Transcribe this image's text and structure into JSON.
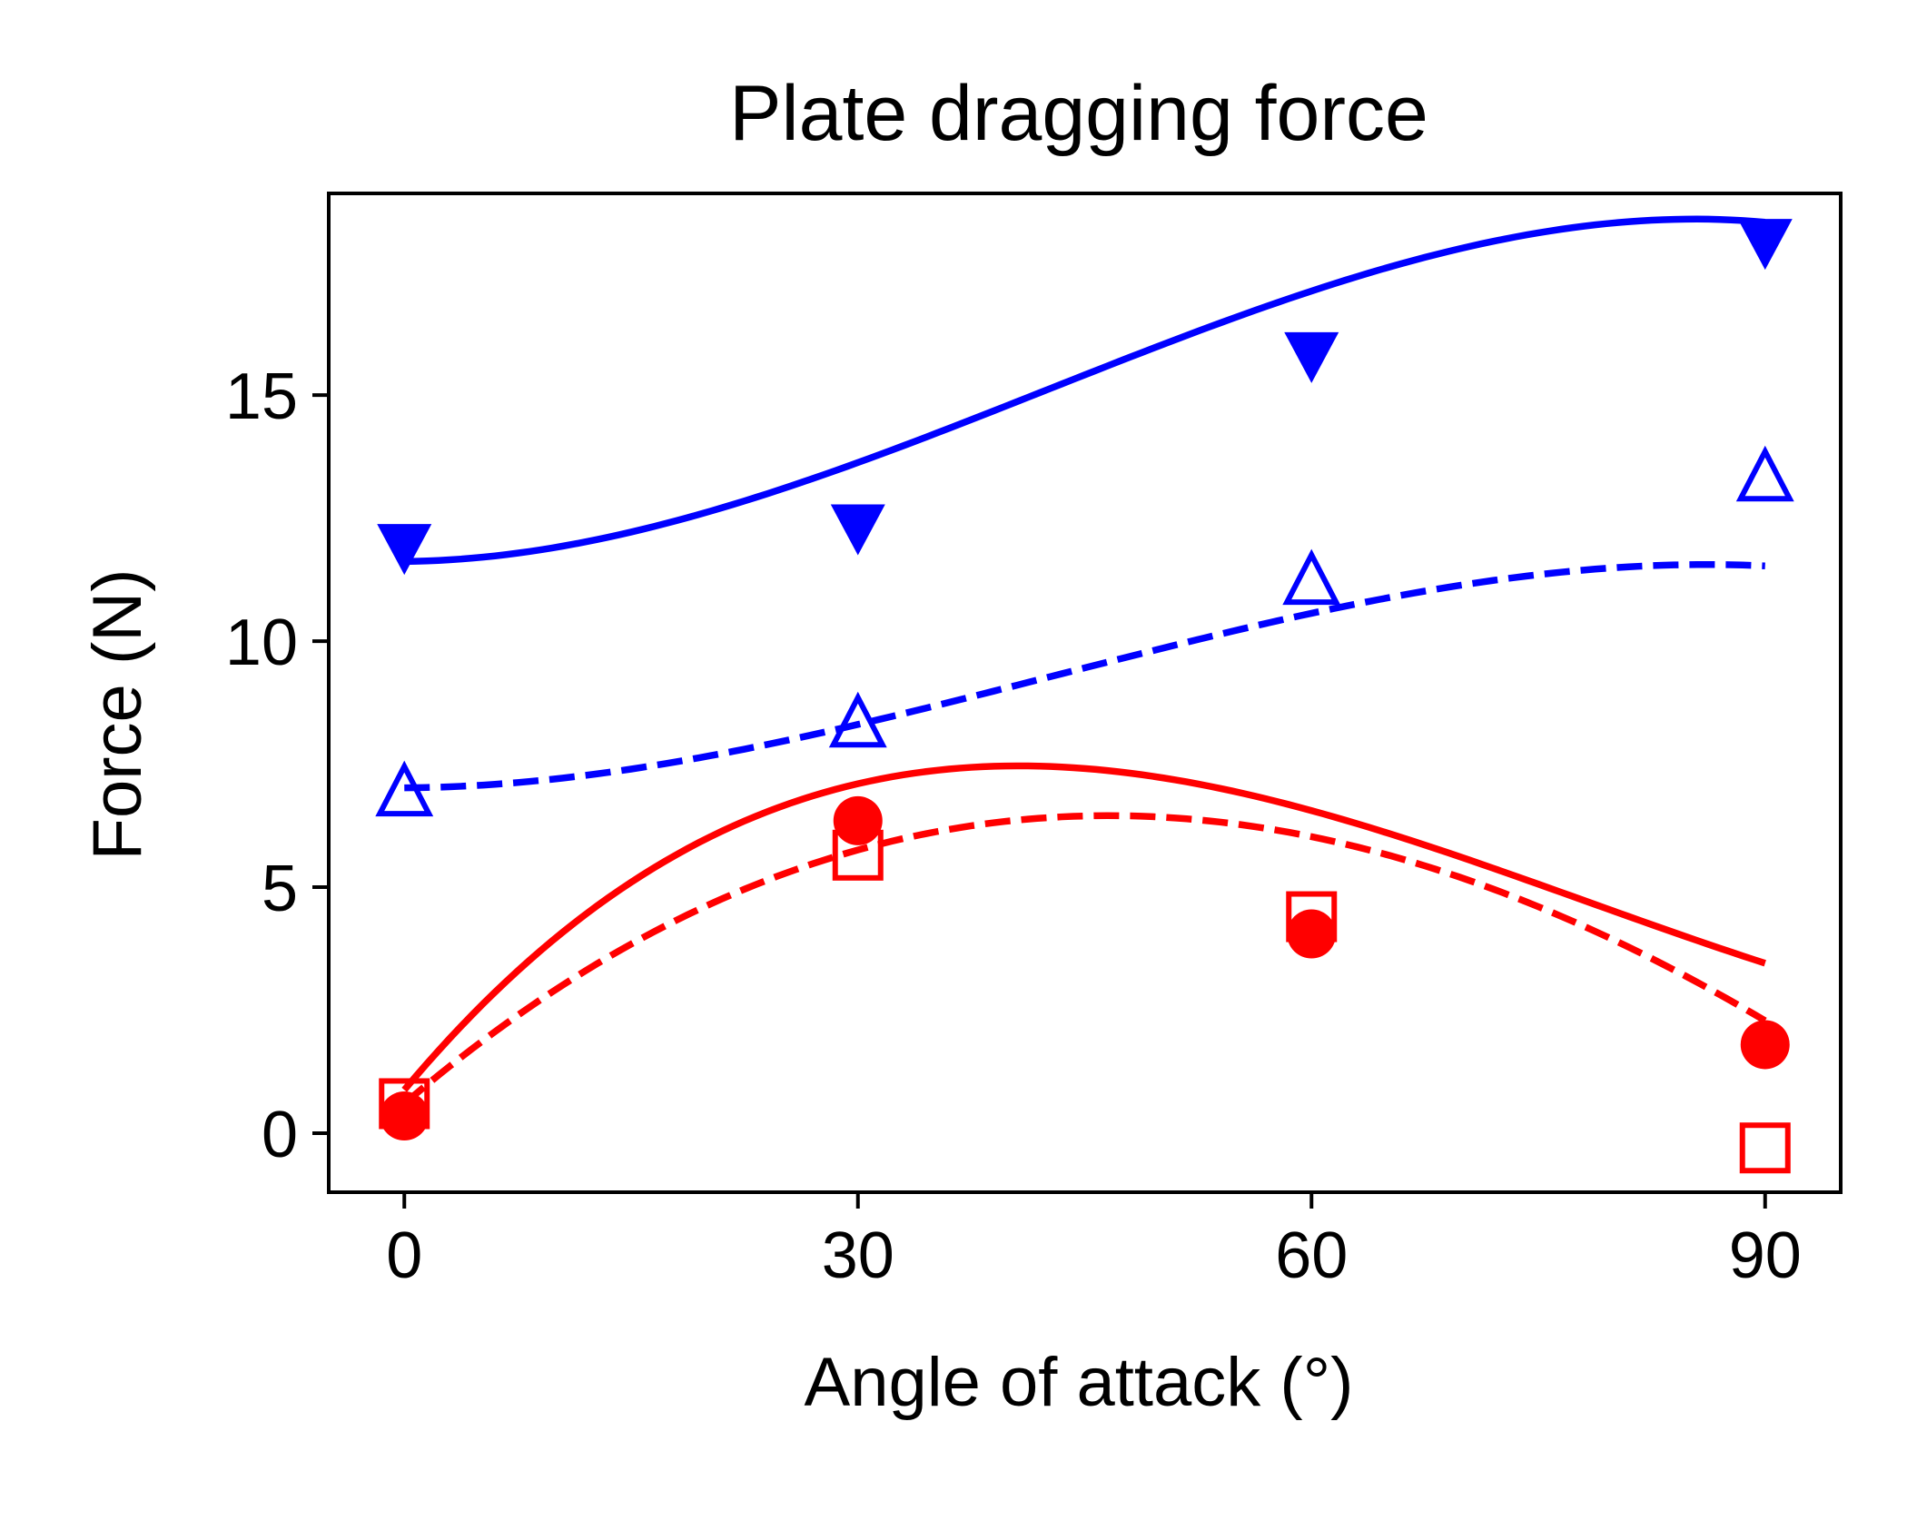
{
  "chart_data": {
    "type": "line",
    "title": "Plate dragging force",
    "xlabel": "Angle of attack (°)",
    "ylabel": "Force (N)",
    "xlim": [
      -5,
      95
    ],
    "ylim": [
      -1.2,
      19.1
    ],
    "xticks": [
      0,
      30,
      60,
      90
    ],
    "yticks": [
      0,
      5,
      10,
      15
    ],
    "grid": false,
    "legend": "none",
    "series": [
      {
        "color": "#0000ff",
        "line_style": "solid",
        "marker": "filled-down-triangle",
        "x": [
          0,
          30,
          60,
          90
        ],
        "y": [
          11.9,
          12.3,
          15.8,
          18.1
        ],
        "fit": [
          11.62,
          0.0028,
          0.0028,
          -2.2e-05
        ]
      },
      {
        "color": "#0000ff",
        "line_style": "dashed",
        "marker": "open-up-triangle",
        "x": [
          0,
          30,
          60,
          90
        ],
        "y": [
          6.9,
          8.3,
          11.2,
          13.3
        ],
        "fit": [
          7.02,
          0.0015,
          0.0018,
          -1.4e-05
        ]
      },
      {
        "color": "#ff0000",
        "line_style": "solid",
        "marker": "filled-circle",
        "x": [
          0,
          30,
          60,
          90
        ],
        "y": [
          0.35,
          6.35,
          4.05,
          1.8
        ],
        "fit": [
          0.88,
          0.367,
          -0.0061,
          2.6e-05
        ]
      },
      {
        "color": "#ff0000",
        "line_style": "dashed",
        "marker": "open-square",
        "x": [
          0,
          30,
          60,
          90
        ],
        "y": [
          0.6,
          5.65,
          4.4,
          -0.3
        ],
        "fit": [
          0.6,
          0.263,
          -0.0032,
          5.4e-06
        ]
      }
    ]
  }
}
